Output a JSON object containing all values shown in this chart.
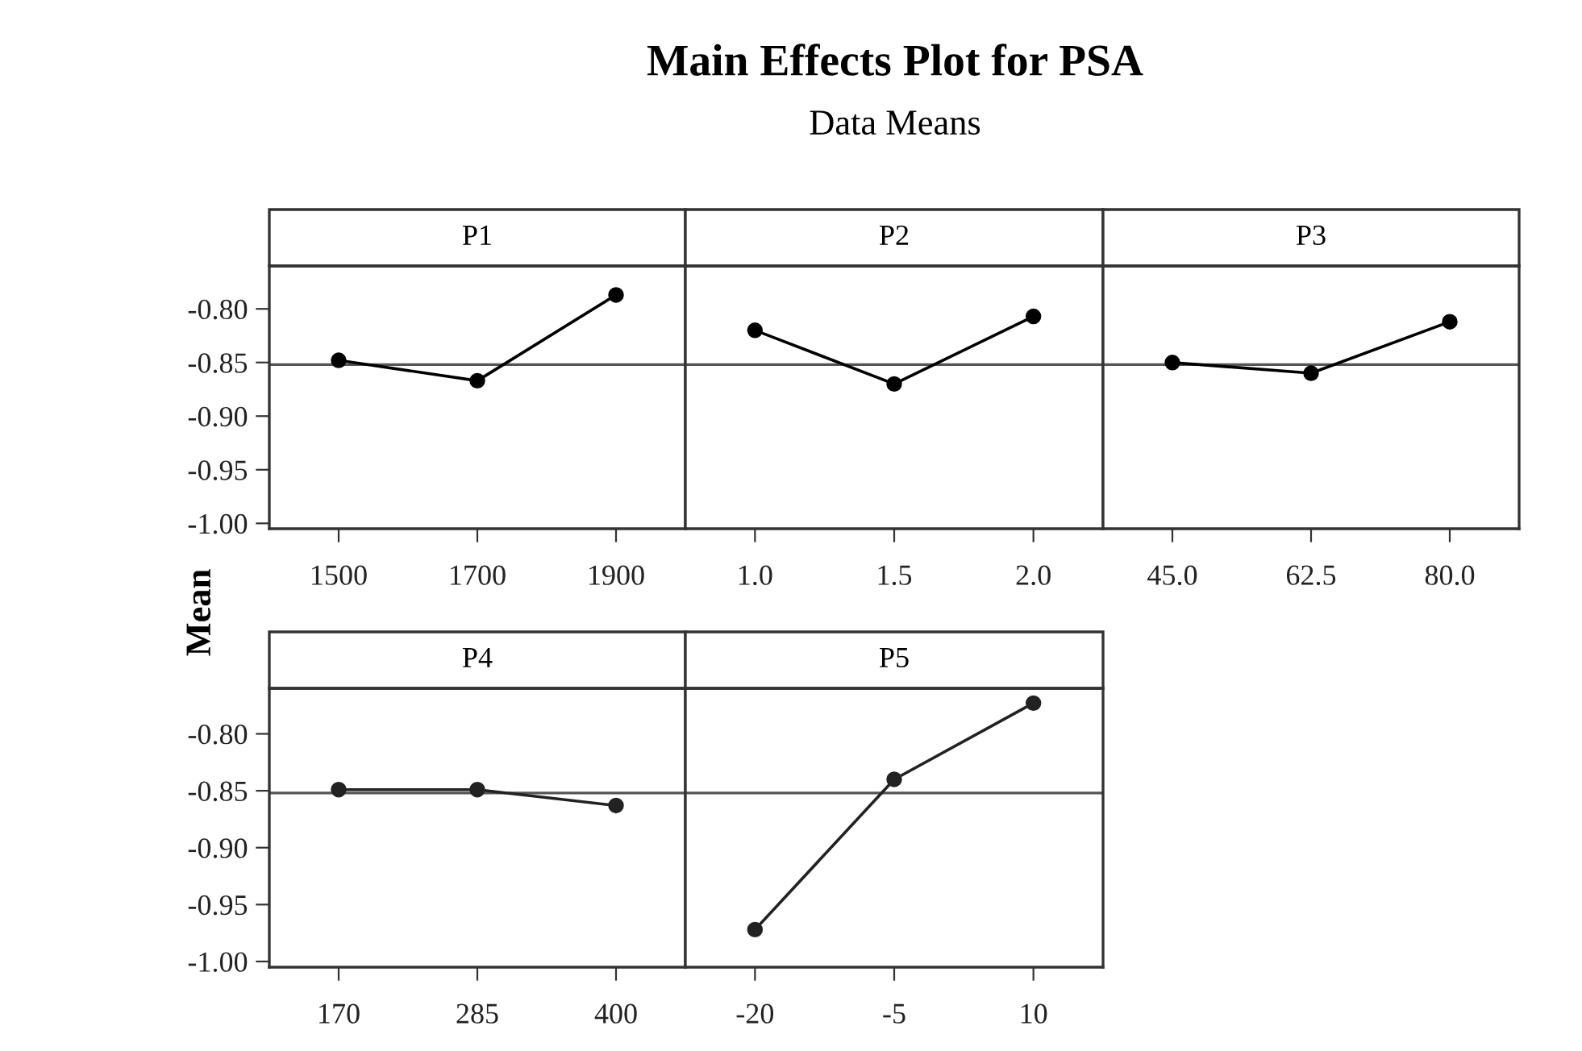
{
  "chart_data": [
    {
      "type": "line",
      "title": "P1",
      "ylabel": "Mean",
      "annotations": [
        "Main Effects Plot for PSA",
        "Data Means"
      ],
      "categories": [
        "1500",
        "1700",
        "1900"
      ],
      "values": [
        -0.848,
        -0.867,
        -0.787
      ],
      "color": "#000000",
      "marker": "circle",
      "ylim": [
        -1.005,
        -0.76
      ],
      "yticks": [
        {
          "value": -0.8,
          "label": "-0.80"
        },
        {
          "value": -0.85,
          "label": "-0.85"
        },
        {
          "value": -0.9,
          "label": "-0.90"
        },
        {
          "value": -0.95,
          "label": "-0.95"
        },
        {
          "value": -1.0,
          "label": "-1.00"
        }
      ],
      "ref_lines": [
        {
          "axis": "y",
          "value": -0.852
        }
      ]
    },
    {
      "type": "line",
      "title": "P2",
      "categories": [
        "1.0",
        "1.5",
        "2.0"
      ],
      "values": [
        -0.82,
        -0.87,
        -0.807
      ],
      "color": "#000000",
      "marker": "circle",
      "ylim": [
        -1.005,
        -0.76
      ],
      "tick_labels": "x",
      "ref_lines": [
        {
          "axis": "y",
          "value": -0.852
        }
      ]
    },
    {
      "type": "line",
      "title": "P3",
      "categories": [
        "45.0",
        "62.5",
        "80.0"
      ],
      "values": [
        -0.85,
        -0.86,
        -0.812
      ],
      "color": "#000000",
      "marker": "circle",
      "ylim": [
        -1.005,
        -0.76
      ],
      "tick_labels": "x",
      "ref_lines": [
        {
          "axis": "y",
          "value": -0.852
        }
      ]
    },
    {
      "type": "line",
      "title": "P4",
      "categories": [
        "170",
        "285",
        "400"
      ],
      "values": [
        -0.849,
        -0.849,
        -0.863
      ],
      "color": "#222222",
      "marker": "circle",
      "ylim": [
        -1.005,
        -0.76
      ],
      "yticks": [
        {
          "value": -0.8,
          "label": "-0.80"
        },
        {
          "value": -0.85,
          "label": "-0.85"
        },
        {
          "value": -0.9,
          "label": "-0.90"
        },
        {
          "value": -0.95,
          "label": "-0.95"
        },
        {
          "value": -1.0,
          "label": "-1.00"
        }
      ],
      "ref_lines": [
        {
          "axis": "y",
          "value": -0.852
        }
      ]
    },
    {
      "type": "line",
      "title": "P5",
      "categories": [
        "-20",
        "-5",
        "10"
      ],
      "values": [
        -0.972,
        -0.84,
        -0.773
      ],
      "color": "#222222",
      "marker": "circle",
      "ylim": [
        -1.005,
        -0.76
      ],
      "tick_labels": "x",
      "ref_lines": [
        {
          "axis": "y",
          "value": -0.852
        }
      ]
    }
  ]
}
